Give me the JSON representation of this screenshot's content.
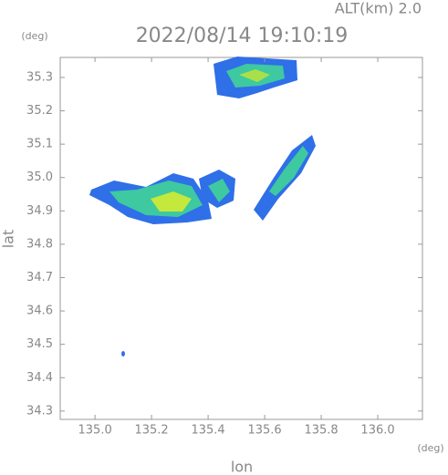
{
  "chart_data": {
    "type": "radar-map",
    "title": "2022/08/14 19:10:19",
    "subtitle": "ALT(km) 2.0",
    "xlabel": "lon",
    "ylabel": "lat",
    "x_unit": "(deg)",
    "y_unit": "(deg)",
    "xlim": [
      134.877,
      136.158
    ],
    "ylim": [
      34.275,
      35.36
    ],
    "xticks": [
      {
        "value": 135,
        "label": "135.0"
      },
      135.2,
      135.4,
      135.6,
      135.8,
      {
        "value": 136,
        "label": "136.0"
      }
    ],
    "yticks": [
      34.3,
      34.4,
      34.5,
      34.6,
      34.7,
      34.8,
      34.9,
      {
        "value": 35,
        "label": "35.0"
      },
      35.1,
      35.2,
      35.3
    ]
  }
}
